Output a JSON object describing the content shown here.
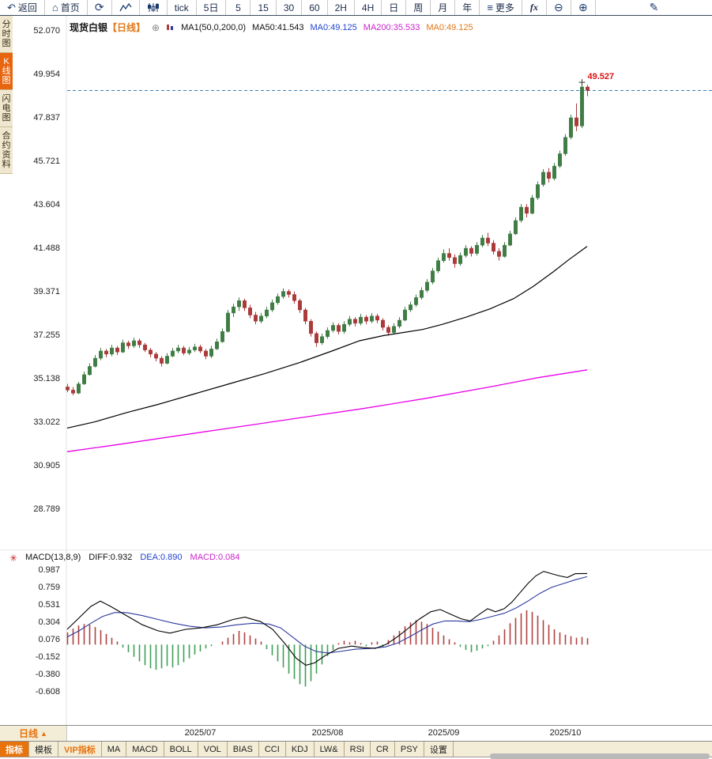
{
  "toolbar": {
    "back_label": "返回",
    "home_label": "首页",
    "periods": [
      "tick",
      "5日",
      "5",
      "15",
      "30",
      "60",
      "2H",
      "4H",
      "日",
      "周",
      "月",
      "年"
    ],
    "more_label": "更多",
    "fx_label": "fx"
  },
  "sidebar": {
    "tabs": [
      {
        "label": "分时图",
        "active": false
      },
      {
        "label": "K线图",
        "active": true
      },
      {
        "label": "闪电图",
        "active": false
      },
      {
        "label": "合约资料",
        "active": false
      }
    ]
  },
  "main_header": {
    "symbol": "现货白银",
    "period_tag": "【日线】",
    "ma_settings": "MA1(50,0,200,0)",
    "ma50": "MA50:41.543",
    "ma0_blue": "MA0:49.125",
    "ma200": "MA200:35.533",
    "ma0_orange": "MA0:49.125"
  },
  "macd_header": {
    "label": "MACD(13,8,9)",
    "diff": "DIFF:0.932",
    "dea": "DEA:0.890",
    "macd": "MACD:0.084"
  },
  "price_strip": {
    "period_label": "日线",
    "arrow": "▲"
  },
  "bottom_tabs": [
    {
      "label": "指标",
      "style": "active"
    },
    {
      "label": "模板",
      "style": ""
    },
    {
      "label": "VIP指标",
      "style": "vip"
    },
    {
      "label": "MA",
      "style": ""
    },
    {
      "label": "MACD",
      "style": ""
    },
    {
      "label": "BOLL",
      "style": ""
    },
    {
      "label": "VOL",
      "style": ""
    },
    {
      "label": "BIAS",
      "style": ""
    },
    {
      "label": "CCI",
      "style": ""
    },
    {
      "label": "KDJ",
      "style": ""
    },
    {
      "label": "LW&",
      "style": ""
    },
    {
      "label": "RSI",
      "style": ""
    },
    {
      "label": "CR",
      "style": ""
    },
    {
      "label": "PSY",
      "style": ""
    },
    {
      "label": "设置",
      "style": ""
    }
  ],
  "colors": {
    "up": "#3f7d45",
    "down": "#ab3a3a",
    "ma50": "#000000",
    "ma200": "#e800e8",
    "diff": "#000000",
    "dea": "#2b3a9e",
    "hist_pos": "#b04040",
    "hist_neg": "#3f9e55",
    "price_line": "#4080b0",
    "annotation": "#dd1111",
    "text_blue": "#2244cc",
    "text_magenta": "#cc22cc",
    "text_orange": "#e07818",
    "accent_orange": "#e8720c"
  },
  "chart_data": {
    "type": "candlestick",
    "title": "现货白银 日线",
    "y_axis_labels": [
      52.07,
      49.954,
      47.837,
      45.721,
      43.604,
      41.488,
      39.371,
      37.255,
      35.138,
      33.022,
      30.905,
      28.789
    ],
    "x_labels": [
      {
        "label": "2025/07",
        "index": 24
      },
      {
        "label": "2025/08",
        "index": 47
      },
      {
        "label": "2025/09",
        "index": 68
      },
      {
        "label": "2025/10",
        "index": 90
      }
    ],
    "last_price": 49.125,
    "high_annotation": {
      "label": "49.527",
      "value": 49.527,
      "index": 93
    },
    "candles": [
      [
        34.7,
        34.85,
        34.45,
        34.55
      ],
      [
        34.55,
        34.7,
        34.3,
        34.4
      ],
      [
        34.4,
        34.95,
        34.35,
        34.85
      ],
      [
        34.85,
        35.45,
        34.8,
        35.3
      ],
      [
        35.3,
        35.85,
        35.25,
        35.7
      ],
      [
        35.7,
        36.25,
        35.65,
        36.1
      ],
      [
        36.1,
        36.6,
        36.0,
        36.45
      ],
      [
        36.45,
        36.55,
        36.15,
        36.3
      ],
      [
        36.3,
        36.75,
        36.2,
        36.6
      ],
      [
        36.6,
        36.7,
        36.25,
        36.4
      ],
      [
        36.4,
        37.0,
        36.35,
        36.85
      ],
      [
        36.85,
        36.95,
        36.55,
        36.7
      ],
      [
        36.7,
        37.1,
        36.6,
        36.95
      ],
      [
        36.95,
        37.05,
        36.6,
        36.75
      ],
      [
        36.75,
        36.85,
        36.4,
        36.5
      ],
      [
        36.5,
        36.6,
        36.15,
        36.3
      ],
      [
        36.3,
        36.4,
        35.95,
        36.1
      ],
      [
        36.1,
        36.2,
        35.7,
        35.85
      ],
      [
        35.85,
        36.35,
        35.8,
        36.2
      ],
      [
        36.2,
        36.6,
        36.15,
        36.45
      ],
      [
        36.45,
        36.75,
        36.35,
        36.6
      ],
      [
        36.6,
        36.7,
        36.25,
        36.35
      ],
      [
        36.35,
        36.65,
        36.25,
        36.5
      ],
      [
        36.5,
        36.8,
        36.4,
        36.65
      ],
      [
        36.65,
        36.75,
        36.35,
        36.45
      ],
      [
        36.45,
        36.55,
        36.05,
        36.2
      ],
      [
        36.2,
        36.7,
        36.1,
        36.55
      ],
      [
        36.55,
        37.05,
        36.5,
        36.9
      ],
      [
        36.9,
        37.55,
        36.85,
        37.4
      ],
      [
        37.4,
        38.45,
        37.35,
        38.3
      ],
      [
        38.3,
        38.75,
        38.1,
        38.6
      ],
      [
        38.6,
        39.05,
        38.4,
        38.9
      ],
      [
        38.9,
        39.0,
        38.4,
        38.55
      ],
      [
        38.55,
        38.7,
        38.05,
        38.2
      ],
      [
        38.2,
        38.35,
        37.75,
        37.9
      ],
      [
        37.9,
        38.3,
        37.8,
        38.15
      ],
      [
        38.15,
        38.6,
        38.05,
        38.45
      ],
      [
        38.45,
        38.95,
        38.35,
        38.8
      ],
      [
        38.8,
        39.25,
        38.7,
        39.1
      ],
      [
        39.1,
        39.5,
        39.0,
        39.35
      ],
      [
        39.35,
        39.45,
        39.05,
        39.2
      ],
      [
        39.2,
        39.35,
        38.75,
        38.9
      ],
      [
        38.9,
        39.0,
        38.3,
        38.45
      ],
      [
        38.45,
        38.55,
        37.75,
        37.9
      ],
      [
        37.9,
        38.0,
        37.15,
        37.3
      ],
      [
        37.3,
        37.4,
        36.65,
        36.85
      ],
      [
        36.85,
        37.3,
        36.75,
        37.15
      ],
      [
        37.15,
        37.6,
        37.05,
        37.45
      ],
      [
        37.45,
        37.85,
        37.35,
        37.7
      ],
      [
        37.7,
        37.8,
        37.25,
        37.4
      ],
      [
        37.4,
        37.9,
        37.3,
        37.75
      ],
      [
        37.75,
        38.15,
        37.65,
        38.0
      ],
      [
        38.0,
        38.1,
        37.65,
        37.8
      ],
      [
        37.8,
        38.25,
        37.7,
        38.1
      ],
      [
        38.1,
        38.2,
        37.75,
        37.9
      ],
      [
        37.9,
        38.3,
        37.8,
        38.15
      ],
      [
        38.15,
        38.25,
        37.8,
        37.95
      ],
      [
        37.95,
        38.05,
        37.45,
        37.6
      ],
      [
        37.6,
        37.7,
        37.2,
        37.35
      ],
      [
        37.35,
        37.8,
        37.25,
        37.65
      ],
      [
        37.65,
        38.1,
        37.55,
        37.95
      ],
      [
        37.95,
        38.6,
        37.9,
        38.45
      ],
      [
        38.45,
        38.85,
        38.35,
        38.7
      ],
      [
        38.7,
        39.2,
        38.6,
        39.05
      ],
      [
        39.05,
        39.55,
        38.95,
        39.4
      ],
      [
        39.4,
        39.95,
        39.3,
        39.8
      ],
      [
        39.8,
        40.5,
        39.7,
        40.35
      ],
      [
        40.35,
        41.0,
        40.25,
        40.85
      ],
      [
        40.85,
        41.4,
        40.75,
        41.2
      ],
      [
        41.2,
        41.45,
        40.85,
        41.0
      ],
      [
        41.0,
        41.15,
        40.5,
        40.7
      ],
      [
        40.7,
        41.25,
        40.6,
        41.1
      ],
      [
        41.1,
        41.6,
        41.0,
        41.45
      ],
      [
        41.45,
        41.55,
        41.05,
        41.2
      ],
      [
        41.2,
        41.75,
        41.1,
        41.6
      ],
      [
        41.6,
        42.1,
        41.5,
        41.95
      ],
      [
        41.95,
        42.2,
        41.55,
        41.7
      ],
      [
        41.7,
        41.85,
        41.15,
        41.3
      ],
      [
        41.3,
        41.45,
        40.85,
        41.05
      ],
      [
        41.05,
        41.75,
        41.0,
        41.6
      ],
      [
        41.6,
        42.3,
        41.55,
        42.15
      ],
      [
        42.15,
        42.95,
        42.1,
        42.8
      ],
      [
        42.8,
        43.6,
        42.7,
        43.45
      ],
      [
        43.45,
        43.6,
        42.95,
        43.15
      ],
      [
        43.15,
        44.05,
        43.1,
        43.9
      ],
      [
        43.9,
        44.7,
        43.8,
        44.55
      ],
      [
        44.55,
        45.3,
        44.45,
        45.15
      ],
      [
        45.15,
        45.35,
        44.65,
        44.85
      ],
      [
        44.85,
        45.6,
        44.75,
        45.45
      ],
      [
        45.45,
        46.2,
        45.35,
        46.05
      ],
      [
        46.05,
        47.0,
        45.95,
        46.85
      ],
      [
        46.85,
        47.95,
        46.75,
        47.8
      ],
      [
        47.8,
        48.5,
        47.15,
        47.4
      ],
      [
        47.4,
        49.527,
        47.3,
        49.3
      ],
      [
        49.3,
        49.4,
        48.85,
        49.125
      ]
    ],
    "ma50_points": [
      [
        85,
        32.7
      ],
      [
        120,
        33.0
      ],
      [
        160,
        33.45
      ],
      [
        200,
        33.85
      ],
      [
        245,
        34.35
      ],
      [
        290,
        34.85
      ],
      [
        335,
        35.35
      ],
      [
        380,
        35.9
      ],
      [
        420,
        36.45
      ],
      [
        455,
        36.95
      ],
      [
        485,
        37.2
      ],
      [
        510,
        37.35
      ],
      [
        535,
        37.5
      ],
      [
        560,
        37.75
      ],
      [
        590,
        38.1
      ],
      [
        620,
        38.5
      ],
      [
        650,
        39.0
      ],
      [
        675,
        39.6
      ],
      [
        700,
        40.3
      ],
      [
        720,
        40.9
      ],
      [
        743,
        41.543
      ]
    ],
    "ma200_points": [
      [
        85,
        31.55
      ],
      [
        150,
        31.9
      ],
      [
        220,
        32.3
      ],
      [
        300,
        32.75
      ],
      [
        380,
        33.2
      ],
      [
        460,
        33.65
      ],
      [
        540,
        34.15
      ],
      [
        620,
        34.7
      ],
      [
        680,
        35.15
      ],
      [
        743,
        35.533
      ]
    ],
    "macd": {
      "axis_labels": [
        0.987,
        0.759,
        0.531,
        0.304,
        0.076,
        -0.152,
        -0.38,
        -0.608
      ],
      "hist": [
        0.16,
        0.21,
        0.25,
        0.27,
        0.26,
        0.23,
        0.19,
        0.14,
        0.09,
        0.04,
        -0.04,
        -0.1,
        -0.16,
        -0.22,
        -0.27,
        -0.31,
        -0.33,
        -0.31,
        -0.28,
        -0.3,
        -0.27,
        -0.23,
        -0.18,
        -0.13,
        -0.09,
        -0.05,
        -0.02,
        0.0,
        0.04,
        0.09,
        0.14,
        0.18,
        0.16,
        0.12,
        0.08,
        0.04,
        -0.06,
        -0.14,
        -0.22,
        -0.3,
        -0.38,
        -0.45,
        -0.52,
        -0.55,
        -0.48,
        -0.38,
        -0.26,
        -0.15,
        -0.07,
        0.02,
        0.05,
        0.03,
        0.05,
        0.02,
        -0.02,
        0.03,
        0.04,
        -0.03,
        0.06,
        0.12,
        0.18,
        0.24,
        0.29,
        0.32,
        0.3,
        0.27,
        0.22,
        0.17,
        0.12,
        0.07,
        0.03,
        -0.03,
        -0.07,
        -0.1,
        -0.08,
        -0.05,
        -0.02,
        0.05,
        0.12,
        0.2,
        0.28,
        0.35,
        0.41,
        0.45,
        0.43,
        0.38,
        0.32,
        0.26,
        0.2,
        0.16,
        0.13,
        0.11,
        0.09,
        0.1,
        0.084
      ],
      "diff_points": [
        [
          85,
          0.2
        ],
        [
          100,
          0.35
        ],
        [
          115,
          0.5
        ],
        [
          127,
          0.57
        ],
        [
          140,
          0.5
        ],
        [
          160,
          0.38
        ],
        [
          180,
          0.26
        ],
        [
          200,
          0.18
        ],
        [
          215,
          0.15
        ],
        [
          235,
          0.2
        ],
        [
          255,
          0.22
        ],
        [
          275,
          0.26
        ],
        [
          295,
          0.33
        ],
        [
          310,
          0.36
        ],
        [
          330,
          0.3
        ],
        [
          345,
          0.2
        ],
        [
          360,
          0.02
        ],
        [
          375,
          -0.18
        ],
        [
          387,
          -0.27
        ],
        [
          398,
          -0.24
        ],
        [
          412,
          -0.14
        ],
        [
          428,
          -0.05
        ],
        [
          445,
          -0.02
        ],
        [
          460,
          -0.04
        ],
        [
          475,
          -0.05
        ],
        [
          488,
          0.0
        ],
        [
          500,
          0.08
        ],
        [
          515,
          0.2
        ],
        [
          530,
          0.33
        ],
        [
          545,
          0.43
        ],
        [
          557,
          0.46
        ],
        [
          570,
          0.4
        ],
        [
          583,
          0.34
        ],
        [
          595,
          0.31
        ],
        [
          607,
          0.4
        ],
        [
          617,
          0.47
        ],
        [
          627,
          0.43
        ],
        [
          638,
          0.47
        ],
        [
          648,
          0.56
        ],
        [
          658,
          0.68
        ],
        [
          668,
          0.8
        ],
        [
          678,
          0.9
        ],
        [
          688,
          0.96
        ],
        [
          698,
          0.93
        ],
        [
          708,
          0.9
        ],
        [
          718,
          0.88
        ],
        [
          728,
          0.93
        ],
        [
          743,
          0.932
        ]
      ],
      "dea_points": [
        [
          85,
          0.1
        ],
        [
          100,
          0.18
        ],
        [
          115,
          0.28
        ],
        [
          130,
          0.37
        ],
        [
          145,
          0.42
        ],
        [
          160,
          0.42
        ],
        [
          180,
          0.38
        ],
        [
          200,
          0.33
        ],
        [
          220,
          0.28
        ],
        [
          240,
          0.24
        ],
        [
          260,
          0.22
        ],
        [
          280,
          0.23
        ],
        [
          300,
          0.26
        ],
        [
          320,
          0.28
        ],
        [
          340,
          0.27
        ],
        [
          355,
          0.22
        ],
        [
          370,
          0.1
        ],
        [
          385,
          -0.02
        ],
        [
          400,
          -0.09
        ],
        [
          415,
          -0.11
        ],
        [
          430,
          -0.09
        ],
        [
          450,
          -0.06
        ],
        [
          470,
          -0.05
        ],
        [
          488,
          -0.03
        ],
        [
          503,
          0.02
        ],
        [
          518,
          0.1
        ],
        [
          533,
          0.19
        ],
        [
          548,
          0.27
        ],
        [
          563,
          0.31
        ],
        [
          578,
          0.31
        ],
        [
          593,
          0.3
        ],
        [
          608,
          0.33
        ],
        [
          623,
          0.37
        ],
        [
          638,
          0.41
        ],
        [
          653,
          0.48
        ],
        [
          668,
          0.57
        ],
        [
          683,
          0.67
        ],
        [
          698,
          0.75
        ],
        [
          713,
          0.8
        ],
        [
          728,
          0.85
        ],
        [
          743,
          0.89
        ]
      ]
    }
  }
}
